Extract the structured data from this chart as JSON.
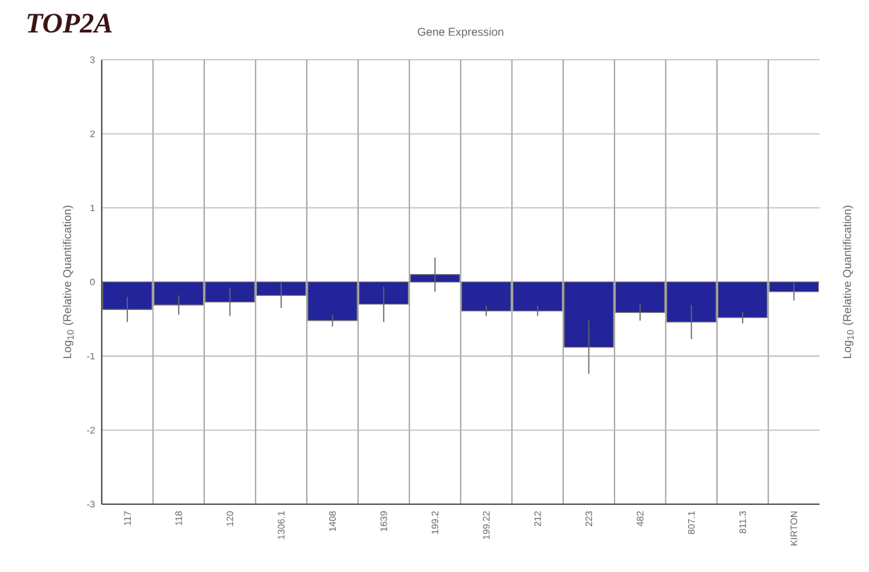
{
  "chart_data": {
    "type": "bar",
    "title": "TOP2A",
    "subtitle": "Gene Expression",
    "ylabel": "Log$_{10}$ (Relative Quantification)",
    "y2label": "Log$_{10}$ (Relative Quantification)",
    "categories": [
      "117",
      "118",
      "120",
      "1306.1",
      "1408",
      "1639",
      "199.2",
      "199.22",
      "212",
      "223",
      "482",
      "807.1",
      "811.3",
      "KIRTON"
    ],
    "values": [
      -0.37,
      -0.31,
      -0.27,
      -0.18,
      -0.52,
      -0.3,
      0.1,
      -0.39,
      -0.39,
      -0.88,
      -0.41,
      -0.54,
      -0.48,
      -0.13
    ],
    "errors": [
      0.17,
      0.13,
      0.19,
      0.17,
      0.08,
      0.24,
      0.23,
      0.07,
      0.07,
      0.36,
      0.11,
      0.23,
      0.08,
      0.12
    ],
    "color": "#23239a",
    "ylim": [
      -3,
      3
    ],
    "yticks": [
      -3,
      -2,
      -1,
      0,
      1,
      2,
      3
    ],
    "grid": true
  }
}
